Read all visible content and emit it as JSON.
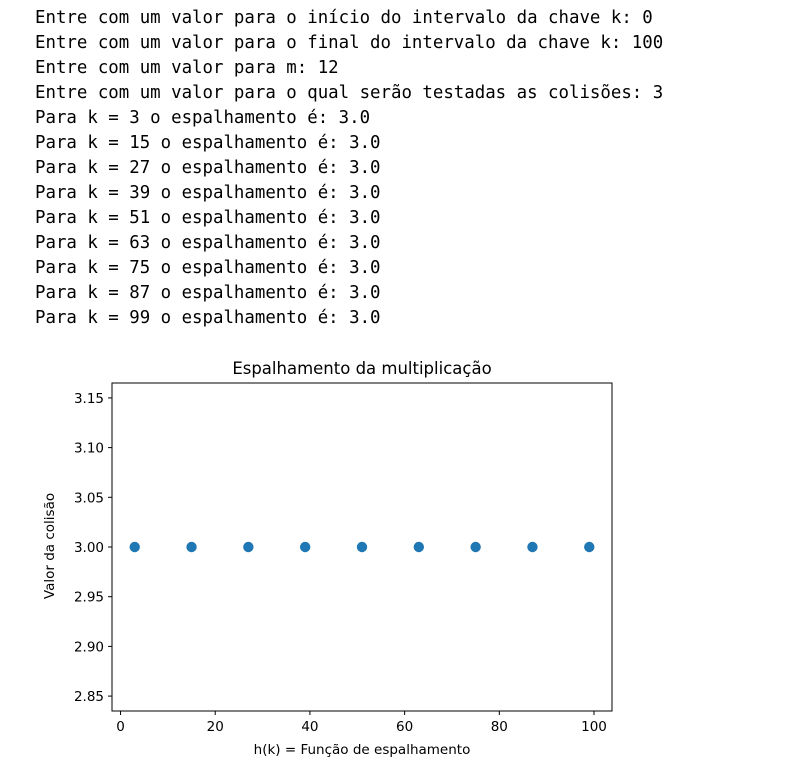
{
  "console": {
    "lines": [
      "Entre com um valor para o início do intervalo da chave k: 0",
      "Entre com um valor para o final do intervalo da chave k: 100",
      "Entre com um valor para m: 12",
      "Entre com um valor para o qual serão testadas as colisões: 3",
      "Para k = 3 o espalhamento é: 3.0",
      "Para k = 15 o espalhamento é: 3.0",
      "Para k = 27 o espalhamento é: 3.0",
      "Para k = 39 o espalhamento é: 3.0",
      "Para k = 51 o espalhamento é: 3.0",
      "Para k = 63 o espalhamento é: 3.0",
      "Para k = 75 o espalhamento é: 3.0",
      "Para k = 87 o espalhamento é: 3.0",
      "Para k = 99 o espalhamento é: 3.0"
    ]
  },
  "chart_data": {
    "type": "scatter",
    "title": "Espalhamento da multiplicação",
    "xlabel": "h(k) = Função de espalhamento",
    "ylabel": "Valor da colisão",
    "x": [
      3,
      15,
      27,
      39,
      51,
      63,
      75,
      87,
      99
    ],
    "y": [
      3.0,
      3.0,
      3.0,
      3.0,
      3.0,
      3.0,
      3.0,
      3.0,
      3.0
    ],
    "xlim": [
      -1.8,
      103.8
    ],
    "ylim": [
      2.835,
      3.165
    ],
    "xticks": [
      0,
      20,
      40,
      60,
      80,
      100
    ],
    "xtick_labels": [
      "0",
      "20",
      "40",
      "60",
      "80",
      "100"
    ],
    "yticks": [
      2.85,
      2.9,
      2.95,
      3.0,
      3.05,
      3.1,
      3.15
    ],
    "ytick_labels": [
      "2.85",
      "2.90",
      "2.95",
      "3.00",
      "3.05",
      "3.10",
      "3.15"
    ],
    "grid": false,
    "marker_color": "#1f77b4"
  }
}
